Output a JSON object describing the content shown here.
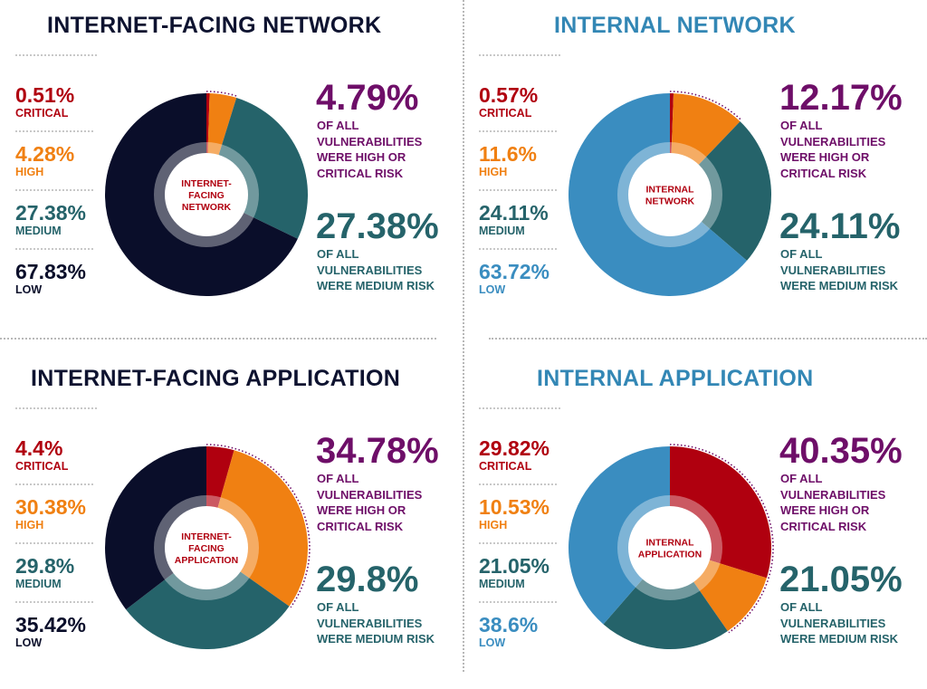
{
  "colors": {
    "critical": "#b0000f",
    "high": "#f08012",
    "medium": "#25636a",
    "low_dark": "#0a0e2a",
    "low_blue": "#3a8dc0",
    "purple": "#6e0e68",
    "title_dark": "#0e1330",
    "title_blue": "#3387b5"
  },
  "quadrants": [
    {
      "title": "INTERNET-FACING NETWORK",
      "legend": [
        {
          "pct": "0.51%",
          "label": "CRITICAL"
        },
        {
          "pct": "4.28%",
          "label": "HIGH"
        },
        {
          "pct": "27.38%",
          "label": "MEDIUM"
        },
        {
          "pct": "67.83%",
          "label": "LOW"
        }
      ],
      "center_label": [
        "INTERNET-",
        "FACING",
        "NETWORK"
      ],
      "high_critical": {
        "pct": "4.79%",
        "text": [
          "OF ALL",
          "VULNERABILITIES",
          "WERE HIGH OR",
          "CRITICAL RISK"
        ]
      },
      "medium": {
        "pct": "27.38%",
        "text": [
          "OF ALL",
          "VULNERABILITIES",
          "WERE MEDIUM RISK"
        ]
      }
    },
    {
      "title": "INTERNAL NETWORK",
      "legend": [
        {
          "pct": "0.57%",
          "label": "CRITICAL"
        },
        {
          "pct": "11.6%",
          "label": "HIGH"
        },
        {
          "pct": "24.11%",
          "label": "MEDIUM"
        },
        {
          "pct": "63.72%",
          "label": "LOW"
        }
      ],
      "center_label": [
        "INTERNAL",
        "NETWORK"
      ],
      "high_critical": {
        "pct": "12.17%",
        "text": [
          "OF ALL",
          "VULNERABILITIES",
          "WERE HIGH OR",
          "CRITICAL RISK"
        ]
      },
      "medium": {
        "pct": "24.11%",
        "text": [
          "OF ALL",
          "VULNERABILITIES",
          "WERE MEDIUM RISK"
        ]
      }
    },
    {
      "title": "INTERNET-FACING APPLICATION",
      "legend": [
        {
          "pct": "4.4%",
          "label": "CRITICAL"
        },
        {
          "pct": "30.38%",
          "label": "HIGH"
        },
        {
          "pct": "29.8%",
          "label": "MEDIUM"
        },
        {
          "pct": "35.42%",
          "label": "LOW"
        }
      ],
      "center_label": [
        "INTERNET-",
        "FACING",
        "APPLICATION"
      ],
      "high_critical": {
        "pct": "34.78%",
        "text": [
          "OF ALL",
          "VULNERABILITIES",
          "WERE HIGH OR",
          "CRITICAL RISK"
        ]
      },
      "medium": {
        "pct": "29.8%",
        "text": [
          "OF ALL",
          "VULNERABILITIES",
          "WERE MEDIUM RISK"
        ]
      }
    },
    {
      "title": "INTERNAL APPLICATION",
      "legend": [
        {
          "pct": "29.82%",
          "label": "CRITICAL"
        },
        {
          "pct": "10.53%",
          "label": "HIGH"
        },
        {
          "pct": "21.05%",
          "label": "MEDIUM"
        },
        {
          "pct": "38.6%",
          "label": "LOW"
        }
      ],
      "center_label": [
        "INTERNAL",
        "APPLICATION"
      ],
      "high_critical": {
        "pct": "40.35%",
        "text": [
          "OF ALL",
          "VULNERABILITIES",
          "WERE HIGH OR",
          "CRITICAL RISK"
        ]
      },
      "medium": {
        "pct": "21.05%",
        "text": [
          "OF ALL",
          "VULNERABILITIES",
          "WERE MEDIUM RISK"
        ]
      }
    }
  ],
  "chart_data": [
    {
      "type": "pie",
      "title": "INTERNET-FACING NETWORK",
      "categories": [
        "CRITICAL",
        "HIGH",
        "MEDIUM",
        "LOW"
      ],
      "values": [
        0.51,
        4.28,
        27.38,
        67.83
      ],
      "colors": [
        "#b0000f",
        "#f08012",
        "#25636a",
        "#0a0e2a"
      ]
    },
    {
      "type": "pie",
      "title": "INTERNAL NETWORK",
      "categories": [
        "CRITICAL",
        "HIGH",
        "MEDIUM",
        "LOW"
      ],
      "values": [
        0.57,
        11.6,
        24.11,
        63.72
      ],
      "colors": [
        "#b0000f",
        "#f08012",
        "#25636a",
        "#3a8dc0"
      ]
    },
    {
      "type": "pie",
      "title": "INTERNET-FACING APPLICATION",
      "categories": [
        "CRITICAL",
        "HIGH",
        "MEDIUM",
        "LOW"
      ],
      "values": [
        4.4,
        30.38,
        29.8,
        35.42
      ],
      "colors": [
        "#b0000f",
        "#f08012",
        "#25636a",
        "#0a0e2a"
      ]
    },
    {
      "type": "pie",
      "title": "INTERNAL APPLICATION",
      "categories": [
        "CRITICAL",
        "HIGH",
        "MEDIUM",
        "LOW"
      ],
      "values": [
        29.82,
        10.53,
        21.05,
        38.6
      ],
      "colors": [
        "#b0000f",
        "#f08012",
        "#25636a",
        "#3a8dc0"
      ]
    }
  ]
}
